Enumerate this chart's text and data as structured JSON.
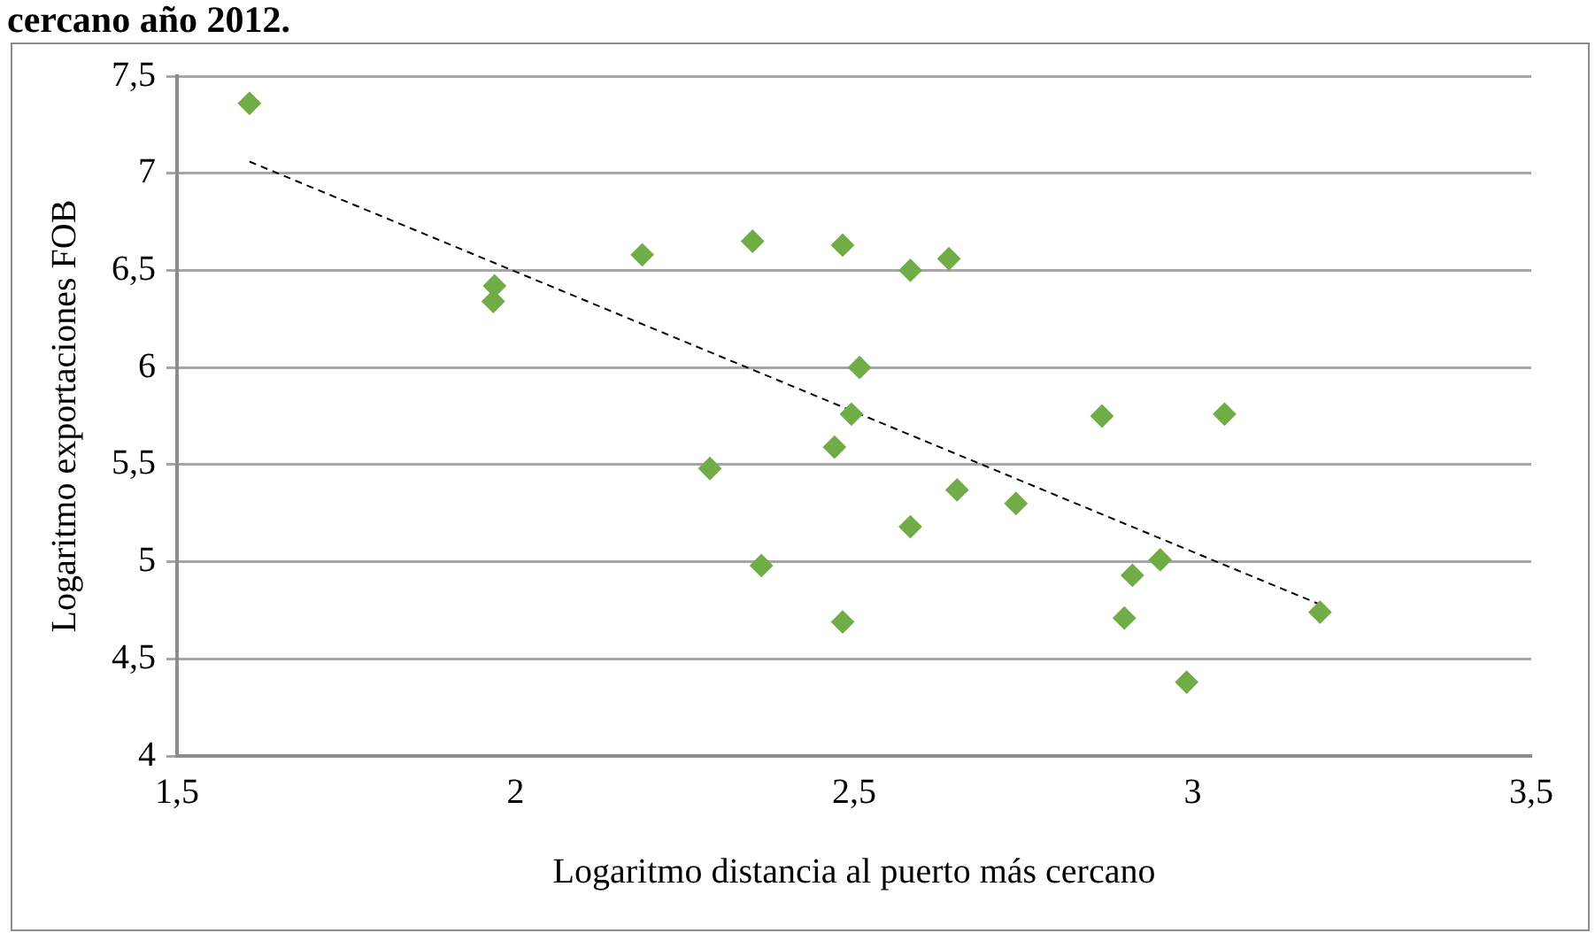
{
  "chart_data": {
    "type": "scatter",
    "title": "cercano año 2012.",
    "xlabel": "Logaritmo distancia al puerto más cercano",
    "ylabel": "Logaritmo exportaciones FOB",
    "x": [
      1.607,
      1.969,
      1.967,
      2.187,
      2.35,
      2.483,
      2.508,
      2.496,
      2.471,
      2.287,
      2.363,
      2.483,
      2.583,
      2.64,
      2.583,
      2.652,
      2.739,
      2.866,
      3.047,
      2.911,
      2.952,
      2.899,
      2.991,
      3.188
    ],
    "series": [
      {
        "color": "#70ad47",
        "values": [
          7.36,
          6.42,
          6.34,
          6.58,
          6.65,
          6.63,
          6.0,
          5.76,
          5.59,
          5.48,
          4.98,
          4.69,
          6.5,
          6.56,
          5.18,
          5.37,
          5.3,
          5.75,
          5.76,
          4.93,
          5.01,
          4.71,
          4.38,
          4.74
        ]
      },
      {
        "type": "line",
        "color": "#000000",
        "line_style": "dashed",
        "marker": "none",
        "x": [
          1.607,
          3.188
        ],
        "values": [
          7.06,
          4.78
        ]
      }
    ],
    "marker": "diamond",
    "grid": "y",
    "legend": false,
    "xlim": [
      1.5,
      3.5
    ],
    "xticks": [
      {
        "value": 1.5,
        "label": "1,5"
      },
      2,
      {
        "value": 2.5,
        "label": "2,5"
      },
      3,
      {
        "value": 3.5,
        "label": "3,5"
      }
    ],
    "ylim": [
      4,
      7.5
    ],
    "yticks": [
      4,
      {
        "value": 4.5,
        "label": "4,5"
      },
      5,
      {
        "value": 5.5,
        "label": "5,5"
      },
      6,
      {
        "value": 6.5,
        "label": "6,5"
      },
      7,
      {
        "value": 7.5,
        "label": "7,5"
      }
    ]
  }
}
